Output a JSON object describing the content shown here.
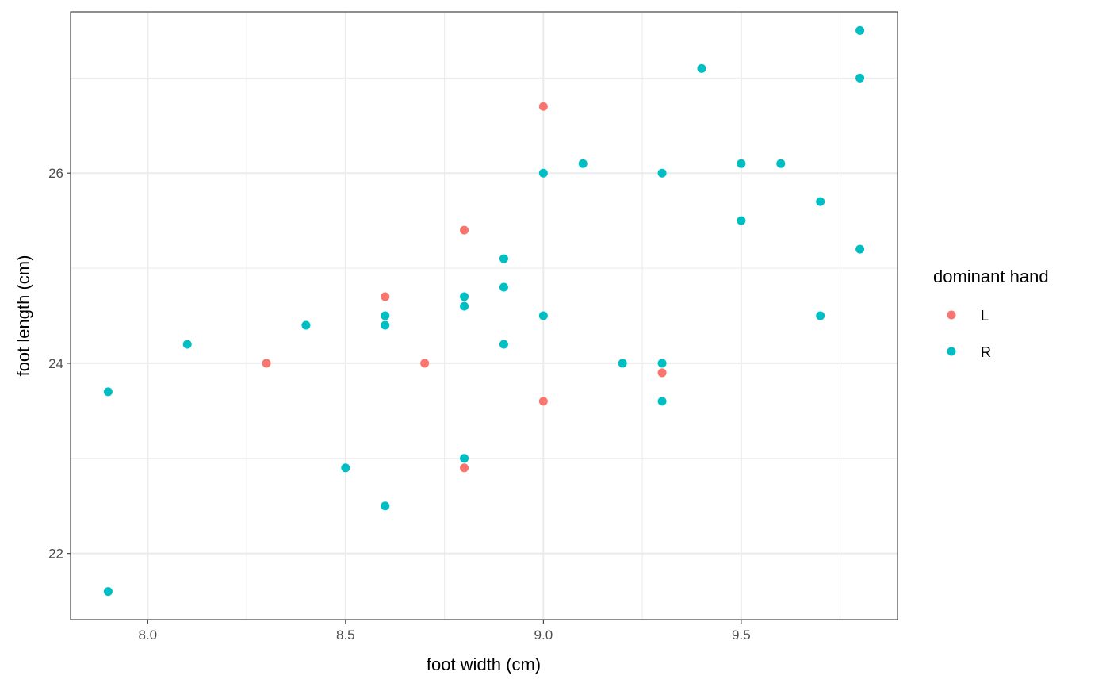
{
  "chart_data": {
    "type": "scatter",
    "title": "",
    "xlabel": "foot width (cm)",
    "ylabel": "foot length (cm)",
    "xlim": [
      7.805,
      9.895
    ],
    "ylim": [
      21.305,
      27.695
    ],
    "x_ticks": [
      8.0,
      8.5,
      9.0,
      9.5
    ],
    "x_tick_labels": [
      "8.0",
      "8.5",
      "9.0",
      "9.5"
    ],
    "y_ticks": [
      22,
      24,
      26
    ],
    "y_tick_labels": [
      "22",
      "24",
      "26"
    ],
    "grid": true,
    "legend": {
      "title": "dominant hand",
      "placement": "right"
    },
    "series": [
      {
        "name": "L",
        "color": "#F8766D",
        "points": [
          {
            "x": 9.0,
            "y": 26.7
          },
          {
            "x": 8.8,
            "y": 25.4
          },
          {
            "x": 8.6,
            "y": 24.7
          },
          {
            "x": 8.3,
            "y": 24.0
          },
          {
            "x": 8.7,
            "y": 24.0
          },
          {
            "x": 9.0,
            "y": 23.6
          },
          {
            "x": 9.3,
            "y": 23.9
          },
          {
            "x": 8.8,
            "y": 22.9
          }
        ]
      },
      {
        "name": "R",
        "color": "#00BFC4",
        "points": [
          {
            "x": 9.8,
            "y": 27.5
          },
          {
            "x": 9.4,
            "y": 27.1
          },
          {
            "x": 9.8,
            "y": 27.0
          },
          {
            "x": 9.0,
            "y": 26.0
          },
          {
            "x": 9.1,
            "y": 26.1
          },
          {
            "x": 9.3,
            "y": 26.0
          },
          {
            "x": 9.5,
            "y": 26.1
          },
          {
            "x": 9.6,
            "y": 26.1
          },
          {
            "x": 9.7,
            "y": 25.7
          },
          {
            "x": 9.5,
            "y": 25.5
          },
          {
            "x": 9.8,
            "y": 25.2
          },
          {
            "x": 8.9,
            "y": 25.1
          },
          {
            "x": 8.9,
            "y": 24.8
          },
          {
            "x": 8.8,
            "y": 24.7
          },
          {
            "x": 8.8,
            "y": 24.6
          },
          {
            "x": 8.6,
            "y": 24.5
          },
          {
            "x": 8.6,
            "y": 24.4
          },
          {
            "x": 8.4,
            "y": 24.4
          },
          {
            "x": 9.0,
            "y": 24.5
          },
          {
            "x": 9.7,
            "y": 24.5
          },
          {
            "x": 8.1,
            "y": 24.2
          },
          {
            "x": 8.9,
            "y": 24.2
          },
          {
            "x": 9.2,
            "y": 24.0
          },
          {
            "x": 9.3,
            "y": 24.0
          },
          {
            "x": 7.9,
            "y": 23.7
          },
          {
            "x": 9.3,
            "y": 23.6
          },
          {
            "x": 8.8,
            "y": 23.0
          },
          {
            "x": 8.5,
            "y": 22.9
          },
          {
            "x": 8.6,
            "y": 22.5
          },
          {
            "x": 7.9,
            "y": 21.6
          }
        ]
      }
    ]
  }
}
